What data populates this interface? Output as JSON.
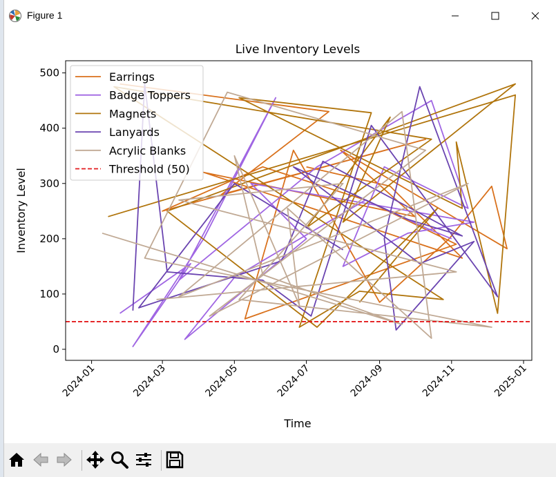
{
  "window": {
    "title": "Figure 1"
  },
  "toolbar": {
    "buttons": [
      {
        "name": "home-icon"
      },
      {
        "name": "back-arrow-icon"
      },
      {
        "name": "forward-arrow-icon"
      },
      {
        "name": "pan-icon"
      },
      {
        "name": "zoom-icon"
      },
      {
        "name": "configure-subplots-icon"
      },
      {
        "name": "save-icon"
      }
    ]
  },
  "chart_data": {
    "type": "line",
    "title": "Live Inventory Levels",
    "xlabel": "Time",
    "ylabel": "Inventory Level",
    "x_ticks": [
      "2024-01",
      "2024-03",
      "2024-05",
      "2024-07",
      "2024-09",
      "2024-11",
      "2025-01"
    ],
    "y_ticks": [
      0,
      100,
      200,
      300,
      400,
      500
    ],
    "xlim": [
      "2023-12-10",
      "2025-01-08"
    ],
    "ylim": [
      -20,
      522
    ],
    "grid": false,
    "legend_position": "top-left",
    "threshold": {
      "name": "Threshold (50)",
      "value": 50,
      "color": "#e31a1c"
    },
    "series": [
      {
        "name": "Earrings",
        "color": "#d9711c",
        "points": [
          [
            "2024-01-25",
            480
          ],
          [
            "2024-07-20",
            430
          ],
          [
            "2024-04-20",
            280
          ],
          [
            "2024-10-10",
            380
          ],
          [
            "2024-03-01",
            250
          ],
          [
            "2024-05-25",
            330
          ],
          [
            "2024-08-20",
            270
          ],
          [
            "2024-11-05",
            190
          ],
          [
            "2024-05-10",
            55
          ],
          [
            "2024-06-20",
            360
          ],
          [
            "2024-09-01",
            85
          ],
          [
            "2024-10-30",
            200
          ],
          [
            "2024-12-05",
            295
          ],
          [
            "2024-12-18",
            182
          ],
          [
            "2024-07-30",
            360
          ],
          [
            "2024-10-01",
            240
          ],
          [
            "2024-04-05",
            320
          ],
          [
            "2024-11-10",
            165
          ],
          [
            "2024-09-10",
            295
          ],
          [
            "2024-07-01",
            330
          ]
        ]
      },
      {
        "name": "Badge Toppers",
        "color": "#a066e3",
        "points": [
          [
            "2024-01-25",
            65
          ],
          [
            "2024-03-25",
            155
          ],
          [
            "2024-02-05",
            5
          ],
          [
            "2024-04-05",
            200
          ],
          [
            "2024-06-05",
            455
          ],
          [
            "2024-03-15",
            125
          ],
          [
            "2024-07-10",
            330
          ],
          [
            "2024-10-15",
            450
          ],
          [
            "2024-11-15",
            255
          ],
          [
            "2024-09-05",
            330
          ],
          [
            "2024-08-01",
            150
          ],
          [
            "2024-09-25",
            210
          ],
          [
            "2024-11-20",
            230
          ],
          [
            "2024-05-15",
            300
          ],
          [
            "2024-07-01",
            200
          ],
          [
            "2024-03-20",
            18
          ],
          [
            "2024-05-01",
            130
          ],
          [
            "2024-08-20",
            270
          ],
          [
            "2024-10-15",
            215
          ],
          [
            "2024-11-01",
            200
          ]
        ]
      },
      {
        "name": "Magnets",
        "color": "#b0740b",
        "points": [
          [
            "2024-01-15",
            240
          ],
          [
            "2024-12-25",
            460
          ],
          [
            "2024-12-10",
            65
          ],
          [
            "2024-11-05",
            375
          ],
          [
            "2024-11-10",
            255
          ],
          [
            "2024-05-05",
            455
          ],
          [
            "2024-08-25",
            428
          ],
          [
            "2024-06-25",
            40
          ],
          [
            "2024-08-15",
            105
          ],
          [
            "2024-10-25",
            90
          ],
          [
            "2024-01-20",
            475
          ],
          [
            "2024-10-15",
            380
          ],
          [
            "2024-07-01",
            220
          ],
          [
            "2024-09-10",
            420
          ],
          [
            "2024-08-01",
            230
          ],
          [
            "2024-12-25",
            480
          ],
          [
            "2024-03-05",
            250
          ],
          [
            "2024-07-10",
            40
          ],
          [
            "2024-10-20",
            255
          ],
          [
            "2024-08-15",
            85
          ]
        ]
      },
      {
        "name": "Lanyards",
        "color": "#6a44b0",
        "points": [
          [
            "2024-02-05",
            70
          ],
          [
            "2024-02-15",
            480
          ],
          [
            "2024-03-05",
            140
          ],
          [
            "2024-05-25",
            125
          ],
          [
            "2024-07-05",
            60
          ],
          [
            "2024-08-25",
            405
          ],
          [
            "2024-12-10",
            95
          ],
          [
            "2024-10-05",
            475
          ],
          [
            "2024-09-05",
            200
          ],
          [
            "2024-09-15",
            35
          ],
          [
            "2024-11-20",
            195
          ],
          [
            "2024-10-05",
            155
          ],
          [
            "2024-06-20",
            330
          ],
          [
            "2024-09-25",
            235
          ],
          [
            "2024-11-10",
            205
          ],
          [
            "2024-07-15",
            340
          ],
          [
            "2024-06-10",
            160
          ],
          [
            "2024-02-10",
            75
          ],
          [
            "2024-05-01",
            300
          ],
          [
            "2024-08-01",
            180
          ]
        ]
      },
      {
        "name": "Acrylic Blanks",
        "color": "#c0a994",
        "points": [
          [
            "2024-01-10",
            210
          ],
          [
            "2024-09-20",
            45
          ],
          [
            "2024-05-25",
            135
          ],
          [
            "2024-05-01",
            350
          ],
          [
            "2024-06-25",
            80
          ],
          [
            "2024-06-15",
            255
          ],
          [
            "2024-10-15",
            20
          ],
          [
            "2024-09-20",
            430
          ],
          [
            "2024-03-15",
            95
          ],
          [
            "2024-11-15",
            300
          ],
          [
            "2024-04-10",
            60
          ],
          [
            "2024-10-10",
            360
          ],
          [
            "2024-04-25",
            465
          ],
          [
            "2024-02-15",
            165
          ],
          [
            "2024-12-05",
            40
          ],
          [
            "2024-05-05",
            90
          ],
          [
            "2024-08-01",
            300
          ],
          [
            "2024-03-15",
            270
          ],
          [
            "2024-11-05",
            140
          ],
          [
            "2024-02-25",
            90
          ]
        ]
      }
    ]
  }
}
